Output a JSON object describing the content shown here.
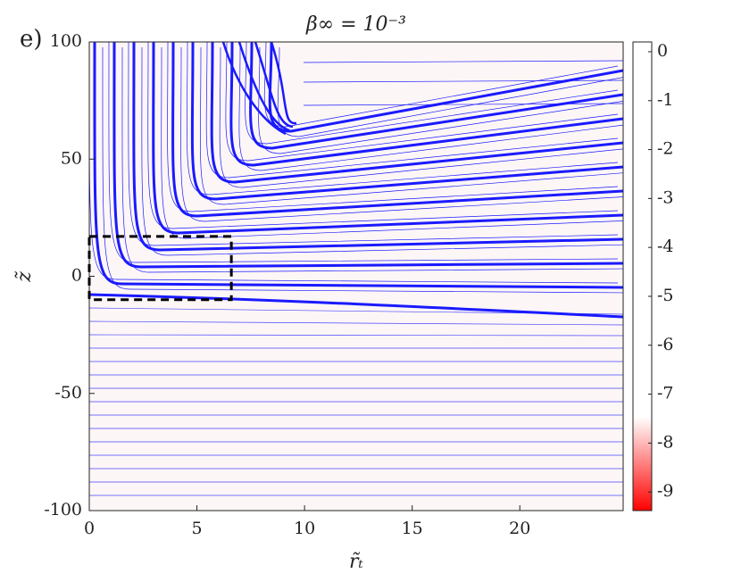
{
  "chart_data": {
    "type": "contour",
    "panel_label": "e)",
    "title": "β∞ = 10⁻³",
    "xlabel": "r̃ₜ",
    "ylabel": "z̃",
    "xlim": [
      0,
      24.8
    ],
    "xticks": [
      0,
      5,
      10,
      15,
      20
    ],
    "ylim": [
      -100,
      100
    ],
    "yticks": [
      -100,
      -50,
      0,
      50,
      100
    ],
    "clim": [
      -9.38,
      0.2
    ],
    "cticks": [
      0,
      -1,
      -2,
      -3,
      -4,
      -5,
      -6,
      -7,
      -8,
      -9
    ],
    "colormap": [
      "#ff0000",
      "#ffffff"
    ],
    "line_color": "#1a1aff",
    "box": {
      "x": [
        0,
        6.6
      ],
      "y": [
        -10,
        17
      ]
    }
  }
}
